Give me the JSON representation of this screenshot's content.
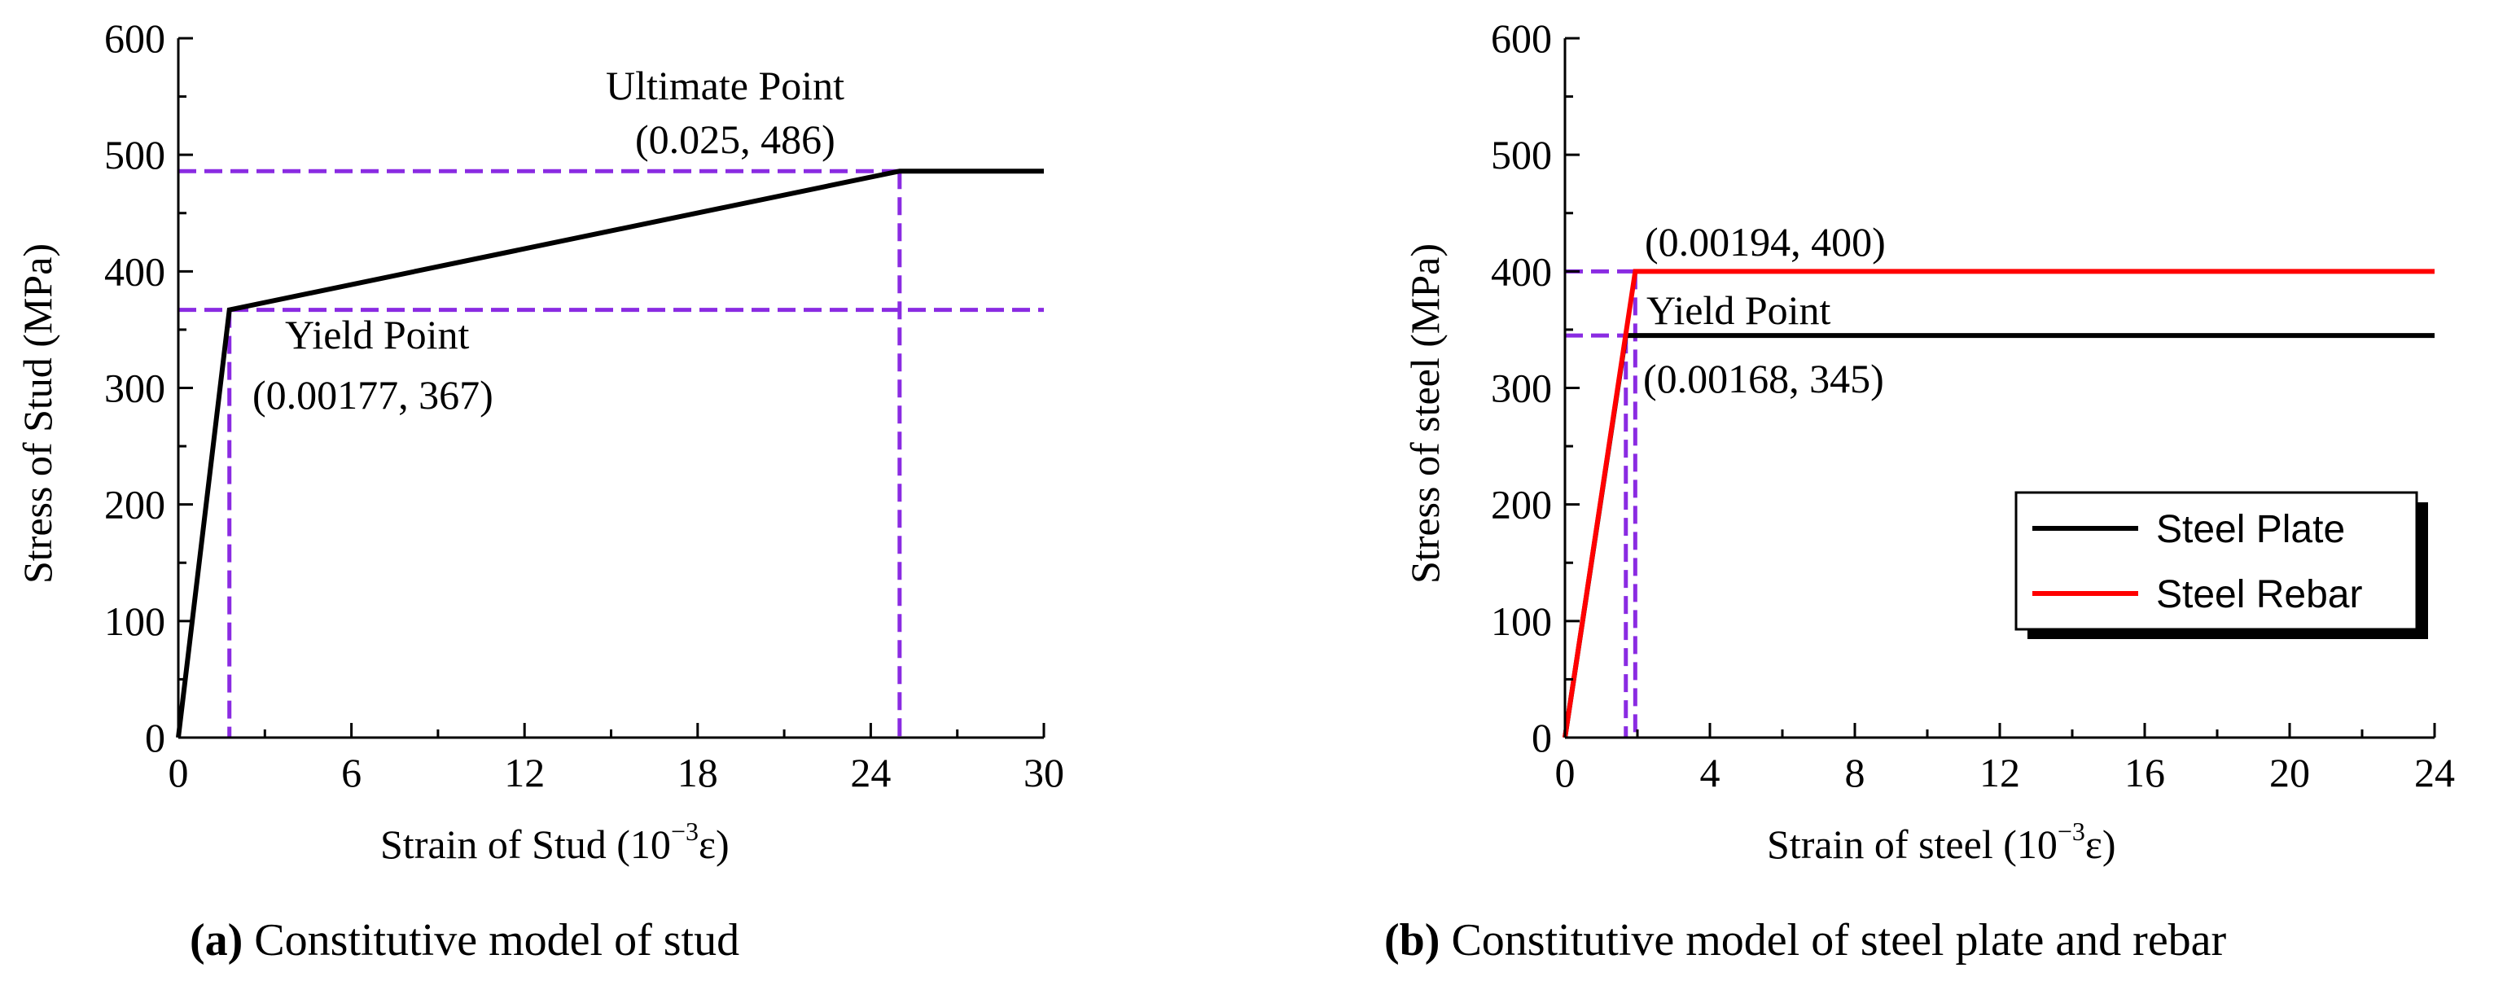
{
  "chart_data": [
    {
      "type": "line",
      "title": "",
      "xlabel_main": "Strain of Stud (10",
      "xlabel_exp": "−3",
      "xlabel_tail": "ε)",
      "ylabel": "Stress of Stud (MPa)",
      "xlim": [
        0,
        30
      ],
      "ylim": [
        0,
        600
      ],
      "xticks": [
        "0",
        "6",
        "12",
        "18",
        "24",
        "30"
      ],
      "xtick_values": [
        0,
        6,
        12,
        18,
        24,
        30
      ],
      "yticks": [
        "0",
        "100",
        "200",
        "300",
        "400",
        "500",
        "600"
      ],
      "ytick_values": [
        0,
        100,
        200,
        300,
        400,
        500,
        600
      ],
      "series": [
        {
          "name": "Stud",
          "color": "#000000",
          "x": [
            0,
            1.77,
            25,
            30
          ],
          "y": [
            0,
            367,
            486,
            486
          ]
        }
      ],
      "guides": {
        "color": "#8a2be2",
        "points": [
          {
            "x": 1.77,
            "y": 367
          },
          {
            "x": 25,
            "y": 486
          }
        ]
      },
      "annotations": [
        {
          "line1": "Yield Point",
          "line2": "(0.00177, 367)"
        },
        {
          "line1": "Ultimate Point",
          "line2": "(0.025, 486)"
        }
      ],
      "caption_label": "(a)",
      "caption_text": " Constitutive model of stud"
    },
    {
      "type": "line",
      "title": "",
      "xlabel_main": "Strain of steel (10",
      "xlabel_exp": "−3",
      "xlabel_tail": "ε)",
      "ylabel": "Stress of steel (MPa)",
      "xlim": [
        0,
        24
      ],
      "ylim": [
        0,
        600
      ],
      "xticks": [
        "0",
        "4",
        "8",
        "12",
        "16",
        "20",
        "24"
      ],
      "xtick_values": [
        0,
        4,
        8,
        12,
        16,
        20,
        24
      ],
      "yticks": [
        "0",
        "100",
        "200",
        "300",
        "400",
        "500",
        "600"
      ],
      "ytick_values": [
        0,
        100,
        200,
        300,
        400,
        500,
        600
      ],
      "series": [
        {
          "name": "Steel Plate",
          "color": "#000000",
          "x": [
            0,
            1.68,
            24
          ],
          "y": [
            0,
            345,
            345
          ]
        },
        {
          "name": "Steel Rebar",
          "color": "#ff0000",
          "x": [
            0,
            1.94,
            24
          ],
          "y": [
            0,
            400,
            400
          ]
        }
      ],
      "guides": {
        "color": "#8a2be2",
        "points": [
          {
            "x": 1.68,
            "y": 345
          },
          {
            "x": 1.94,
            "y": 400
          }
        ]
      },
      "annotations": [
        {
          "line1": "(0.00194, 400)"
        },
        {
          "line1": "Yield Point",
          "line2": "(0.00168, 345)"
        }
      ],
      "legend": {
        "position": "lower-right",
        "entries": [
          "Steel Plate",
          "Steel Rebar"
        ]
      },
      "caption_label": "(b)",
      "caption_text": " Constitutive model of steel plate and rebar"
    }
  ]
}
